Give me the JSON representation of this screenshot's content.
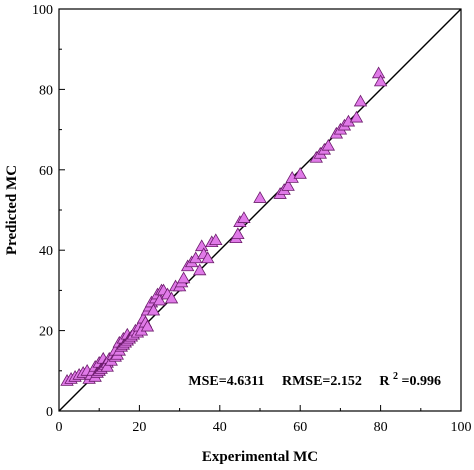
{
  "chart_data": {
    "type": "scatter",
    "title": "",
    "xlabel": "Experimental MC",
    "ylabel": "Predicted MC",
    "xlim": [
      0,
      100
    ],
    "ylim": [
      0,
      100
    ],
    "xticks": [
      0,
      20,
      40,
      60,
      80,
      100
    ],
    "yticks": [
      0,
      20,
      40,
      60,
      80,
      100
    ],
    "grid": false,
    "legend": "none",
    "marker": "triangle",
    "marker_color": "#e07ae8",
    "reference_line": {
      "from": [
        0,
        0
      ],
      "to": [
        100,
        100
      ]
    },
    "annotation": {
      "mse": "MSE=4.6311",
      "rmse": "RMSE=2.152",
      "r2_prefix": "R",
      "r2_sup": "2",
      "r2_value": "=0.996"
    },
    "series": [
      {
        "x": [
          2,
          3,
          4,
          5,
          6,
          7,
          7.5,
          8,
          8.5,
          9,
          9,
          9.5,
          10,
          10,
          10.5,
          11,
          11,
          11.5,
          12,
          12,
          12.5,
          13,
          13.5,
          14,
          14,
          14.5,
          15,
          15,
          15.5,
          16,
          16,
          16.5,
          17,
          17,
          17.5,
          18,
          18.5,
          19,
          19.5,
          20,
          20.5,
          21,
          21.5,
          22,
          22,
          22.5,
          23,
          23.5,
          24,
          24.5,
          25,
          25.5,
          26,
          27,
          28,
          29,
          30,
          30.5,
          31,
          32,
          33,
          34,
          35,
          35.5,
          36,
          37,
          38,
          39,
          44,
          44.5,
          45,
          46,
          50,
          55,
          56,
          57,
          58,
          60,
          64,
          65,
          66,
          67,
          69,
          70,
          71,
          72,
          74,
          75,
          79.5,
          80
        ],
        "y": [
          7.5,
          8,
          8.5,
          9,
          9.5,
          10,
          8,
          9,
          10,
          8.5,
          11,
          9.5,
          10,
          12,
          10.5,
          11,
          13,
          11.5,
          12,
          11,
          13,
          12.5,
          14,
          13.5,
          15,
          14,
          15,
          17,
          16,
          16.5,
          18,
          17,
          17.5,
          19,
          18,
          18.5,
          19,
          20,
          19.5,
          21,
          20,
          23,
          22,
          25,
          21,
          26,
          27,
          25,
          28,
          29,
          27.5,
          30,
          30,
          29,
          28,
          31,
          31,
          32,
          33,
          36,
          37,
          38,
          35,
          41,
          39,
          38,
          42,
          42.5,
          43,
          44,
          47,
          48,
          53,
          54,
          55,
          56,
          58,
          59,
          63,
          64,
          65,
          66,
          69,
          70,
          71,
          72,
          73,
          77,
          84,
          82
        ]
      }
    ]
  }
}
